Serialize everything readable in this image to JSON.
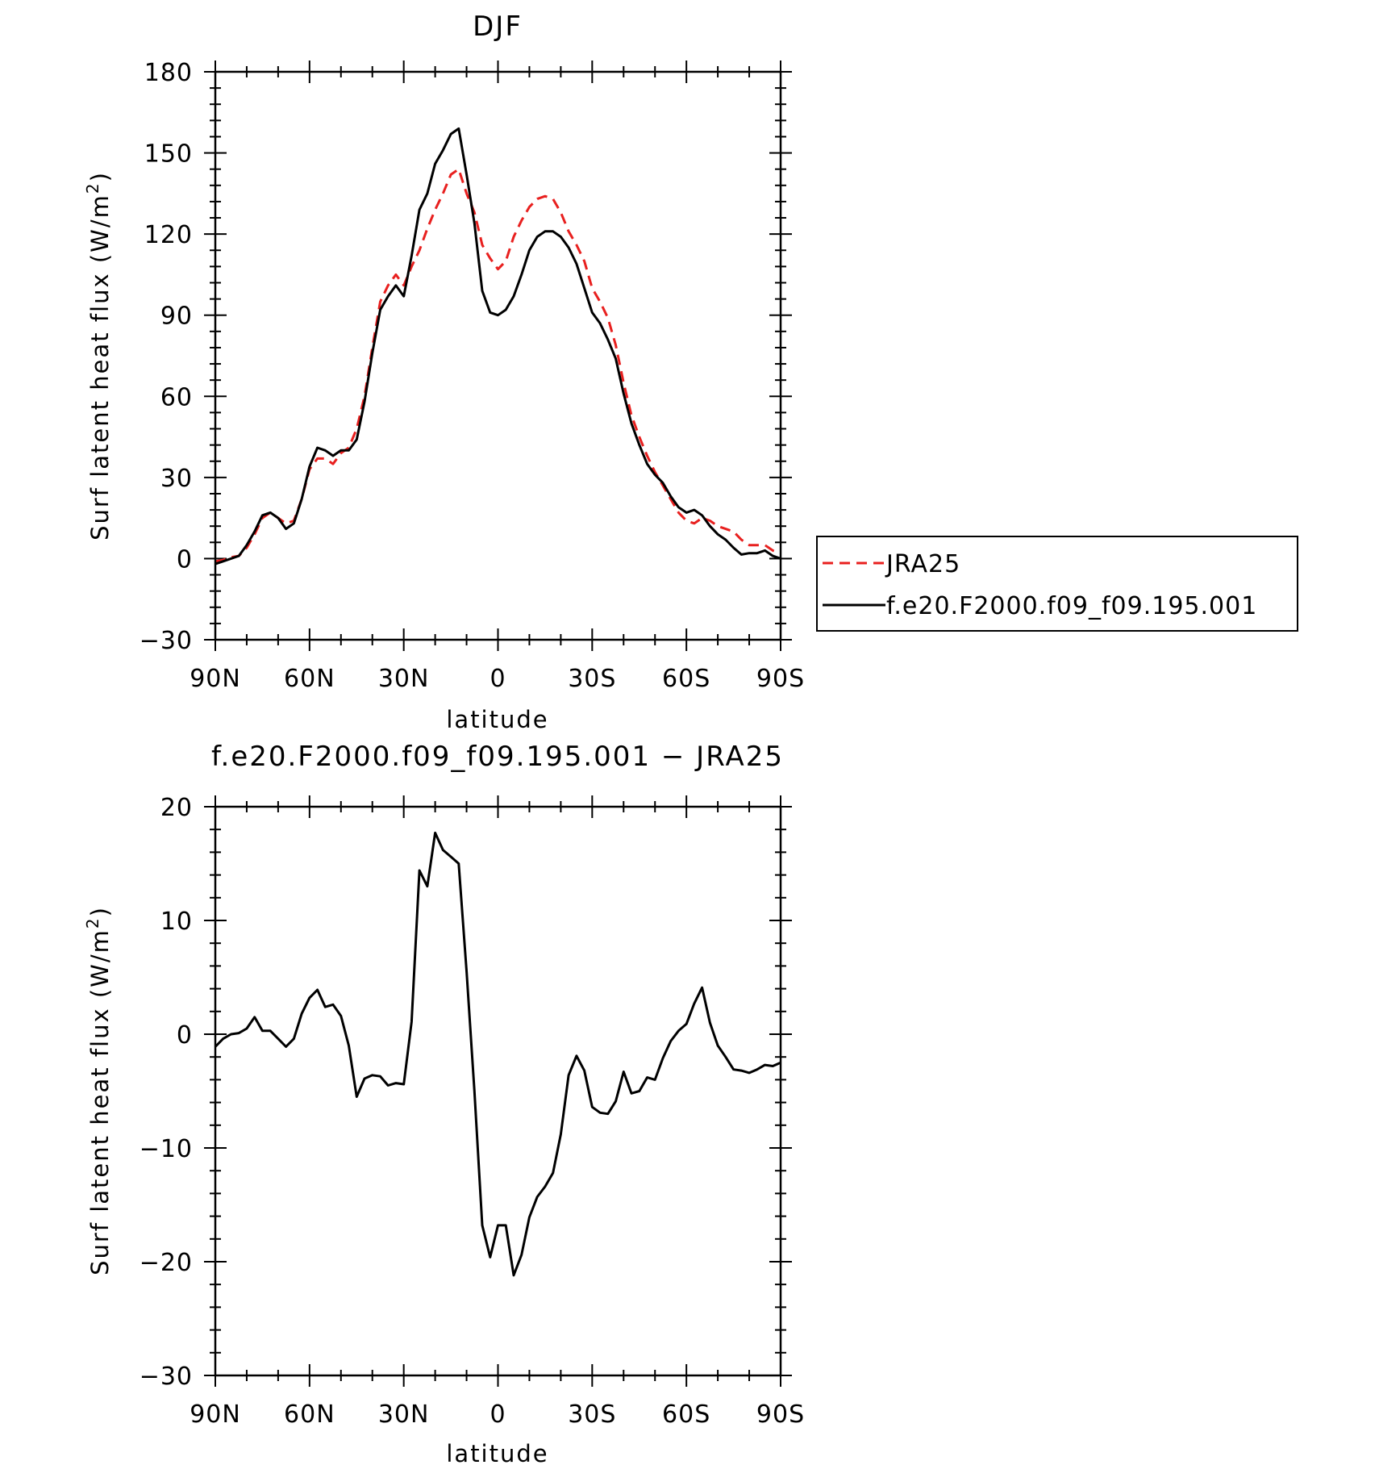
{
  "chart_data": [
    {
      "type": "line",
      "title": "DJF",
      "xlabel": "latitude",
      "ylabel": "Surf latent heat flux (W/m",
      "ylabel_sup": "2",
      "ylabel_tail": ")",
      "xlim": [
        90,
        -90
      ],
      "ylim": [
        -30,
        180
      ],
      "xticks": [
        {
          "value": 90,
          "label": "90N"
        },
        {
          "value": 60,
          "label": "60N"
        },
        {
          "value": 30,
          "label": "30N"
        },
        {
          "value": 0,
          "label": "0"
        },
        {
          "value": -30,
          "label": "30S"
        },
        {
          "value": -60,
          "label": "60S"
        },
        {
          "value": -90,
          "label": "90S"
        }
      ],
      "yticks": [
        -30,
        0,
        30,
        60,
        90,
        120,
        150,
        180
      ],
      "legend_position": "right",
      "series": [
        {
          "name": "JRA25",
          "color": "#e8201f",
          "dash": true,
          "x": [
            90,
            87.5,
            85,
            82.5,
            80,
            77.5,
            75,
            72.5,
            70,
            67.5,
            65,
            62.5,
            60,
            57.5,
            55,
            52.5,
            50,
            47.5,
            45,
            42.5,
            40,
            37.5,
            35,
            32.5,
            30,
            27.5,
            25,
            22.5,
            20,
            17.5,
            15,
            12.5,
            10,
            7.5,
            5,
            2.5,
            0,
            -2.5,
            -5,
            -7.5,
            -10,
            -12.5,
            -15,
            -17.5,
            -20,
            -22.5,
            -25,
            -27.5,
            -30,
            -32.5,
            -35,
            -37.5,
            -40,
            -42.5,
            -45,
            -47.5,
            -50,
            -52.5,
            -55,
            -57.5,
            -60,
            -62.5,
            -65,
            -67.5,
            -70,
            -72.5,
            -75,
            -77.5,
            -80,
            -82.5,
            -85,
            -87.5,
            -90
          ],
          "y": [
            -1,
            -0.5,
            0.5,
            1,
            4,
            9,
            15,
            17,
            15,
            13,
            14,
            22,
            33,
            37,
            37,
            35,
            39,
            41,
            48,
            60,
            78,
            95,
            101,
            105,
            101,
            108,
            114,
            122,
            129,
            135,
            142,
            144,
            135,
            128,
            116,
            111,
            107,
            110,
            119,
            125,
            130,
            133,
            134,
            133,
            128,
            121,
            116,
            110,
            100,
            95,
            89,
            79,
            65,
            53,
            45,
            38,
            32,
            27,
            22,
            17,
            14,
            13,
            15,
            14,
            12,
            11,
            10,
            7,
            5,
            5,
            5,
            3,
            2
          ]
        },
        {
          "name": "f.e20.F2000.f09_f09.195.001",
          "color": "#000000",
          "dash": false,
          "x": [
            90,
            87.5,
            85,
            82.5,
            80,
            77.5,
            75,
            72.5,
            70,
            67.5,
            65,
            62.5,
            60,
            57.5,
            55,
            52.5,
            50,
            47.5,
            45,
            42.5,
            40,
            37.5,
            35,
            32.5,
            30,
            27.5,
            25,
            22.5,
            20,
            17.5,
            15,
            12.5,
            10,
            7.5,
            5,
            2.5,
            0,
            -2.5,
            -5,
            -7.5,
            -10,
            -12.5,
            -15,
            -17.5,
            -20,
            -22.5,
            -25,
            -27.5,
            -30,
            -32.5,
            -35,
            -37.5,
            -40,
            -42.5,
            -45,
            -47.5,
            -50,
            -52.5,
            -55,
            -57.5,
            -60,
            -62.5,
            -65,
            -67.5,
            -70,
            -72.5,
            -75,
            -77.5,
            -80,
            -82.5,
            -85,
            -87.5,
            -90
          ],
          "y": [
            -2,
            -1,
            0,
            1,
            5,
            10,
            16,
            17,
            15,
            11,
            13,
            22,
            34,
            41,
            40,
            38,
            40,
            40,
            44,
            58,
            76,
            92,
            97,
            101,
            97,
            112,
            129,
            135,
            146,
            151,
            157,
            159,
            142,
            124,
            99,
            91,
            90,
            92,
            97,
            105,
            114,
            119,
            121,
            121,
            119,
            115,
            109,
            100,
            91,
            87,
            81,
            74,
            61,
            50,
            42,
            35,
            31,
            28,
            23,
            19,
            17,
            18,
            16,
            12,
            9,
            7,
            4,
            1.5,
            2,
            2,
            3,
            1,
            0
          ]
        }
      ]
    },
    {
      "type": "line",
      "title": "f.e20.F2000.f09_f09.195.001 − JRA25",
      "xlabel": "latitude",
      "ylabel": "Surf latent heat flux (W/m",
      "ylabel_sup": "2",
      "ylabel_tail": ")",
      "xlim": [
        90,
        -90
      ],
      "ylim": [
        -30,
        20
      ],
      "xticks": [
        {
          "value": 90,
          "label": "90N"
        },
        {
          "value": 60,
          "label": "60N"
        },
        {
          "value": 30,
          "label": "30N"
        },
        {
          "value": 0,
          "label": "0"
        },
        {
          "value": -30,
          "label": "30S"
        },
        {
          "value": -60,
          "label": "60S"
        },
        {
          "value": -90,
          "label": "90S"
        }
      ],
      "yticks": [
        -30,
        -20,
        -10,
        0,
        10,
        20
      ],
      "series": [
        {
          "color": "#000000",
          "dash": false,
          "x": [
            90,
            87.5,
            85,
            82.5,
            80,
            77.5,
            75,
            72.5,
            70,
            67.5,
            65,
            62.5,
            60,
            57.5,
            55,
            52.5,
            50,
            47.5,
            45,
            42.5,
            40,
            37.5,
            35,
            32.5,
            30,
            27.5,
            25,
            22.5,
            20,
            17.5,
            15,
            12.5,
            10,
            7.5,
            5,
            2.5,
            0,
            -2.5,
            -5,
            -7.5,
            -10,
            -12.5,
            -15,
            -17.5,
            -20,
            -22.5,
            -25,
            -27.5,
            -30,
            -32.5,
            -35,
            -37.5,
            -40,
            -42.5,
            -45,
            -47.5,
            -50,
            -52.5,
            -55,
            -57.5,
            -60,
            -62.5,
            -65,
            -67.5,
            -70,
            -72.5,
            -75,
            -77.5,
            -80,
            -82.5,
            -85,
            -87.5,
            -90
          ],
          "y": [
            -1.1,
            -0.4,
            0,
            0.1,
            0.5,
            1.5,
            0.3,
            0.3,
            -0.4,
            -1.1,
            -0.4,
            1.8,
            3.2,
            3.9,
            2.4,
            2.6,
            1.6,
            -1,
            -5.5,
            -3.9,
            -3.6,
            -3.7,
            -4.5,
            -4.3,
            -4.4,
            1.1,
            14.4,
            13,
            17.7,
            16.2,
            15.6,
            15,
            5.5,
            -5,
            -16.8,
            -19.6,
            -16.8,
            -16.8,
            -21.2,
            -19.4,
            -16.1,
            -14.3,
            -13.4,
            -12.2,
            -8.8,
            -3.6,
            -1.9,
            -3.2,
            -6.4,
            -6.9,
            -7,
            -5.9,
            -3.3,
            -5.2,
            -5,
            -3.8,
            -4,
            -2.1,
            -0.6,
            0.3,
            0.9,
            2.7,
            4.1,
            1,
            -1,
            -2,
            -3.1,
            -3.2,
            -3.4,
            -3.1,
            -2.7,
            -2.8,
            -2.5
          ]
        }
      ]
    }
  ]
}
